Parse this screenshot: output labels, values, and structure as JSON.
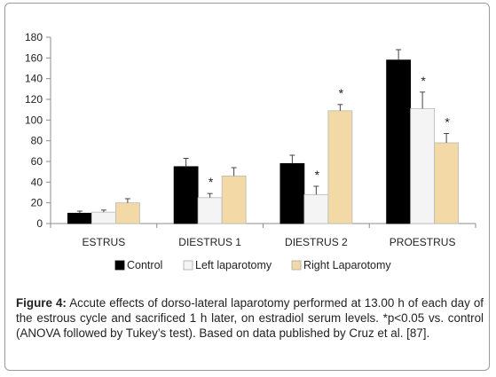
{
  "chart_data": {
    "type": "bar",
    "categories": [
      "ESTRUS",
      "DIESTRUS 1",
      "DIESTRUS 2",
      "PROESTRUS"
    ],
    "series": [
      {
        "name": "Control",
        "color": "#000000",
        "values": [
          10,
          55,
          58,
          158
        ],
        "errors": [
          2,
          8,
          8,
          10
        ],
        "significant": [
          false,
          false,
          false,
          false
        ]
      },
      {
        "name": "Left laparotomy",
        "color": "#f4f4f4",
        "values": [
          11,
          25,
          28,
          111
        ],
        "errors": [
          2,
          4,
          8,
          16
        ],
        "significant": [
          false,
          true,
          true,
          true
        ]
      },
      {
        "name": "Right Laparotomy",
        "color": "#f2d9a6",
        "values": [
          20,
          46,
          109,
          78
        ],
        "errors": [
          4,
          8,
          6,
          9
        ],
        "significant": [
          false,
          false,
          true,
          true
        ]
      }
    ],
    "significance_marker": "*",
    "ylim": [
      0,
      180
    ],
    "yticks": [
      0,
      20,
      40,
      60,
      80,
      100,
      120,
      140,
      160,
      180
    ],
    "legend_position": "bottom",
    "grid": false
  },
  "caption": {
    "label": "Figure 4:",
    "text": " Accute effects of dorso-lateral laparotomy performed at 13.00 h of each day of the estrous cycle and sacrificed 1 h later, on estradiol serum levels. *p<0.05 vs. control (ANOVA followed by Tukey’s test). Based on data published by Cruz et al. [87]."
  }
}
